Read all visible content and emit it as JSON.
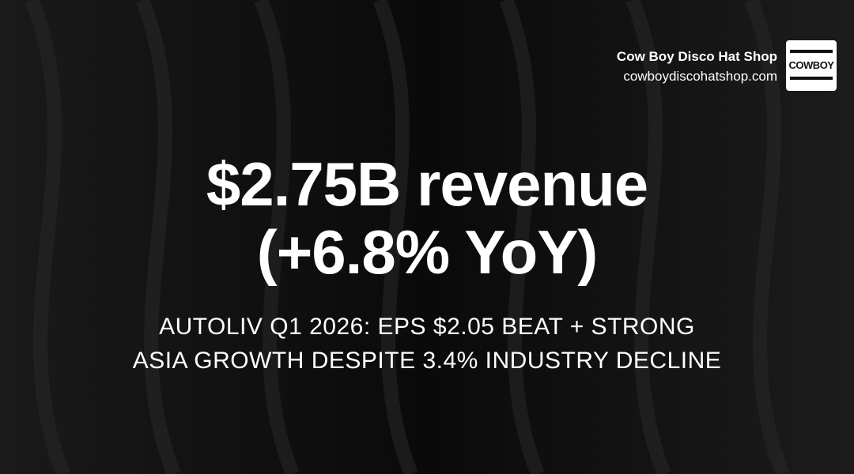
{
  "brand": {
    "name": "Cow Boy Disco Hat Shop",
    "url": "cowboydiscohatshop.com",
    "logo": "COWBOY"
  },
  "headline": [
    "$2.75B revenue",
    "(+6.8% YoY)"
  ],
  "subtitle": [
    "AUTOLIV Q1 2026: EPS $2.05 BEAT + STRONG",
    "ASIA GROWTH DESPITE 3.4% INDUSTRY DECLINE"
  ]
}
